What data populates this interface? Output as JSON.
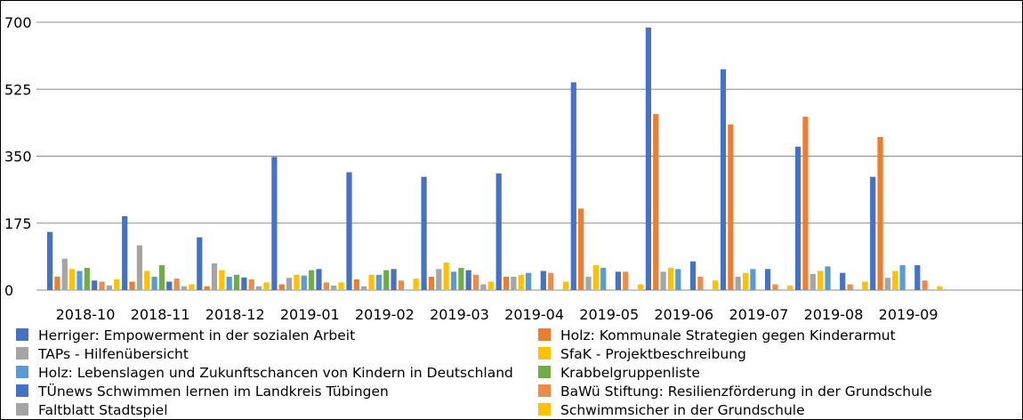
{
  "chart_data": {
    "type": "bar",
    "title": "",
    "xlabel": "",
    "ylabel": "",
    "ylim": [
      0,
      700
    ],
    "yticks": [
      "0",
      "175",
      "350",
      "525",
      "700"
    ],
    "grid": true,
    "legend_position": "bottom",
    "categories": [
      "2018-10",
      "2018-11",
      "2018-12",
      "2019-01",
      "2019-02",
      "2019-03",
      "2019-04",
      "2019-05",
      "2019-06",
      "2019-07",
      "2019-08",
      "2019-09"
    ],
    "series": [
      {
        "name": "Herriger: Empowerment in der sozialen Arbeit",
        "color": "#4472C4",
        "values": [
          152,
          193,
          138,
          348,
          308,
          296,
          305,
          543,
          686,
          577,
          375,
          296
        ]
      },
      {
        "name": "Holz: Kommunale Strategien gegen Kinderarmut",
        "color": "#ED7D31",
        "values": [
          35,
          22,
          10,
          15,
          28,
          35,
          35,
          213,
          460,
          433,
          453,
          400
        ]
      },
      {
        "name": "TAPs - Hilfenübersicht",
        "color": "#A5A5A5",
        "values": [
          82,
          117,
          70,
          32,
          10,
          55,
          35,
          35,
          48,
          35,
          42,
          32
        ]
      },
      {
        "name": "SfaK - Projektbeschreibung",
        "color": "#FFC000",
        "values": [
          55,
          50,
          52,
          40,
          40,
          72,
          40,
          65,
          58,
          45,
          50,
          50
        ]
      },
      {
        "name": "Holz: Lebenslagen und Zukunftschancen von Kindern in Deutschland",
        "color": "#5B9BD5",
        "values": [
          50,
          35,
          35,
          38,
          40,
          48,
          45,
          58,
          55,
          55,
          62,
          65
        ]
      },
      {
        "name": "Krabbelgruppenliste",
        "color": "#70AD47",
        "values": [
          58,
          65,
          40,
          52,
          52,
          58,
          null,
          null,
          null,
          null,
          null,
          null
        ]
      },
      {
        "name": "TÜnews Schwimmen lernen im Landkreis Tübingen",
        "color": "#4472C4",
        "values": [
          25,
          22,
          33,
          55,
          55,
          52,
          50,
          48,
          75,
          55,
          45,
          65
        ]
      },
      {
        "name": "BaWü Stiftung: Resilienzförderung in der Grundschule",
        "color": "#F08A4B",
        "values": [
          22,
          30,
          28,
          20,
          25,
          40,
          45,
          48,
          35,
          15,
          15,
          25
        ]
      },
      {
        "name": "Faltblatt Stadtspiel",
        "color": "#A5A5A5",
        "values": [
          12,
          10,
          10,
          12,
          null,
          15,
          null,
          null,
          null,
          null,
          null,
          null
        ]
      },
      {
        "name": "Schwimmsicher in der Grundschule",
        "color": "#FFC000",
        "values": [
          28,
          15,
          20,
          20,
          30,
          22,
          22,
          15,
          25,
          12,
          22,
          10
        ]
      }
    ]
  }
}
